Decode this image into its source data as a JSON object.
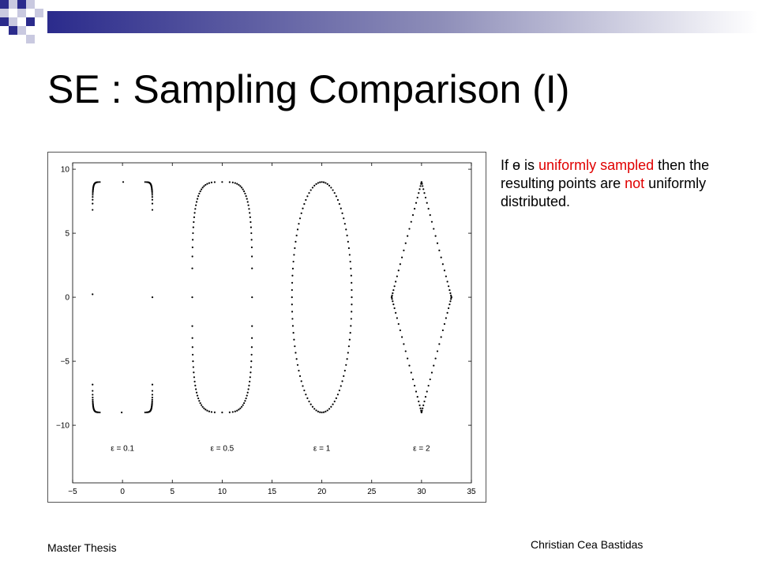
{
  "slide": {
    "title": "SE : Sampling Comparison (I)",
    "footer_left": "Master Thesis",
    "footer_right": "Christian Cea Bastidas",
    "accent_color": "#2b2b8c",
    "highlight_color": "#e00000"
  },
  "note": {
    "t1": "If ",
    "theta": "ɵ",
    "t2": " is ",
    "h1": "uniformly sampled",
    "t3": " then the resulting points are ",
    "h2": "not",
    "t4": " uniformly distributed."
  },
  "chart_data": {
    "type": "scatter",
    "title": "",
    "xlabel": "",
    "ylabel": "",
    "xlim": [
      -5,
      35
    ],
    "ylim": [
      -14.5,
      10.5
    ],
    "x_ticks": [
      -5,
      0,
      5,
      10,
      15,
      20,
      25,
      30,
      35
    ],
    "x_tick_labels": [
      "−5",
      "0",
      "5",
      "10",
      "15",
      "20",
      "25",
      "30",
      "35"
    ],
    "y_ticks": [
      10,
      5,
      0,
      -5,
      -10
    ],
    "y_tick_labels": [
      "10",
      "5",
      "0",
      "−5",
      "−10"
    ],
    "grid": false,
    "series": [
      {
        "name": "ε = 0.1",
        "epsilon": 0.1,
        "center_x": 0,
        "a": 3,
        "b": 9,
        "label_y": -12
      },
      {
        "name": "ε = 0.5",
        "epsilon": 0.5,
        "center_x": 10,
        "a": 3,
        "b": 9,
        "label_y": -12
      },
      {
        "name": "ε = 1",
        "epsilon": 1,
        "center_x": 20,
        "a": 3,
        "b": 9,
        "label_y": -12
      },
      {
        "name": "ε = 2",
        "epsilon": 2,
        "center_x": 30,
        "a": 3,
        "b": 9,
        "label_y": -12
      }
    ],
    "samples_per_curve": 100,
    "sampling": "uniform in theta"
  }
}
